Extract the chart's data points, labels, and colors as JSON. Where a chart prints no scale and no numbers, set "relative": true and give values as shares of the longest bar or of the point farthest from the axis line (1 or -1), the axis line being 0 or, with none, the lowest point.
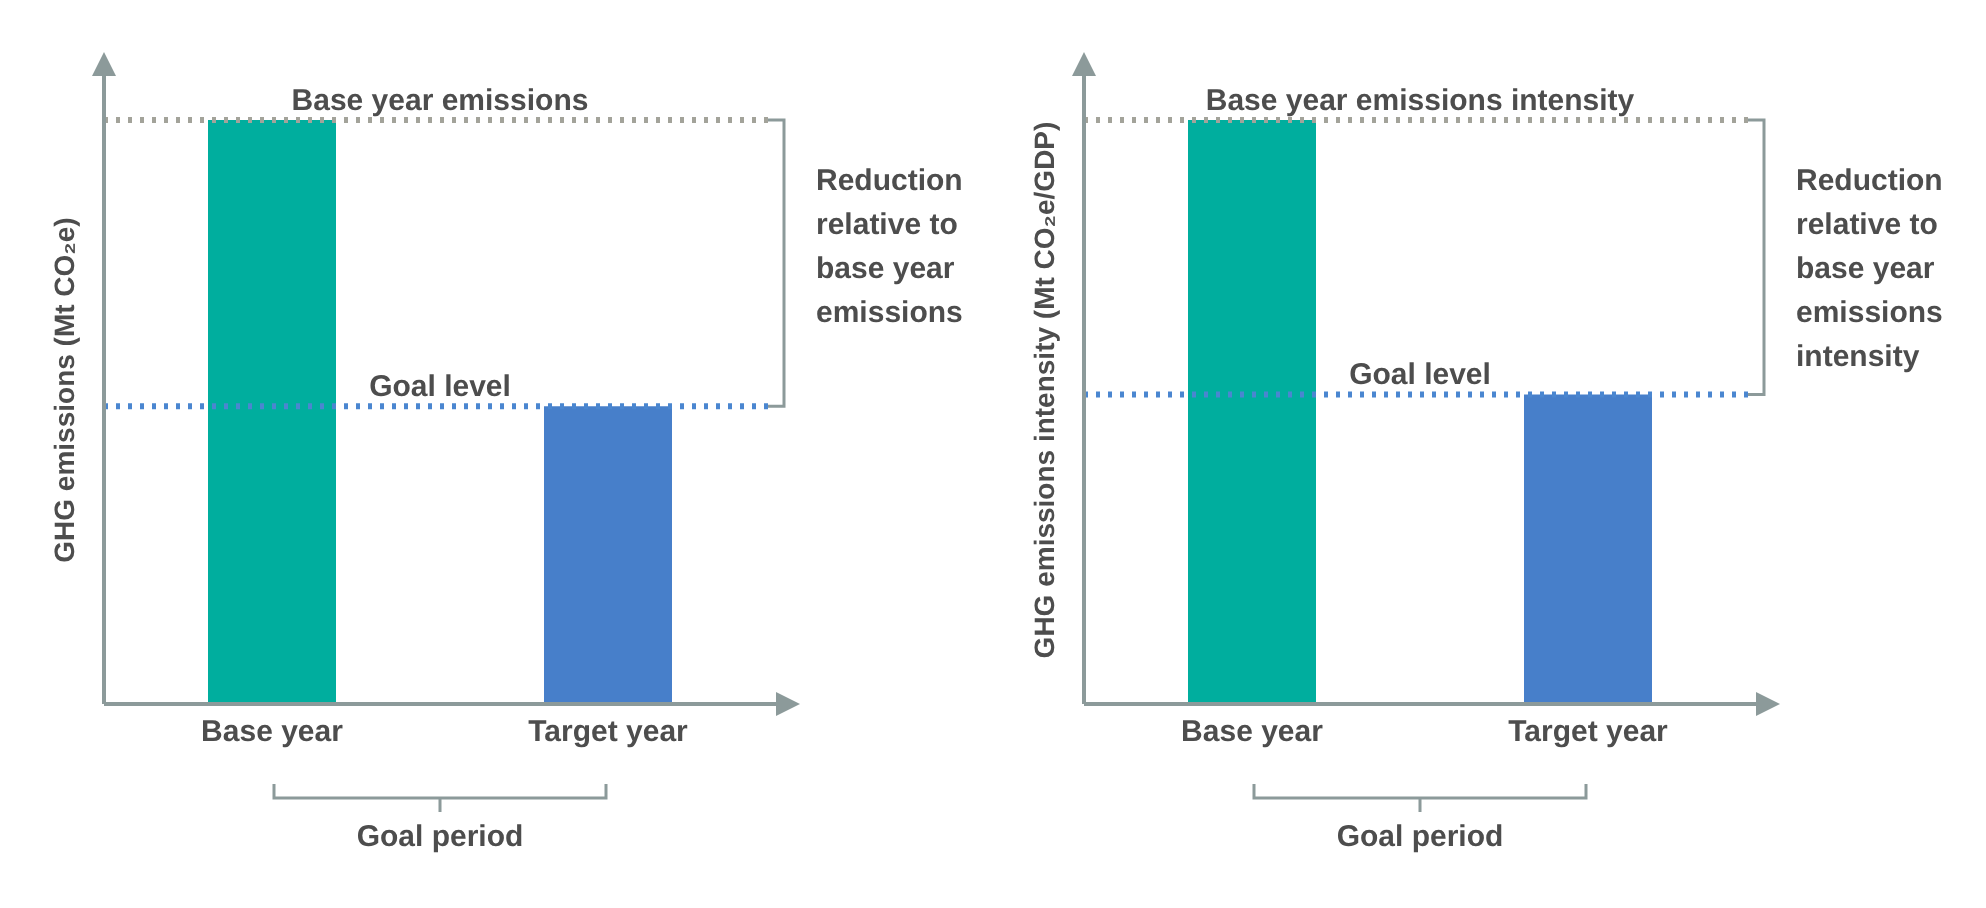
{
  "chart_data": [
    {
      "type": "bar",
      "relative": true,
      "ylabel": "GHG emissions (Mt CO₂e)",
      "categories": [
        "Base year",
        "Target year"
      ],
      "values": [
        1,
        0.51
      ],
      "colors": [
        "#00ae9e",
        "#477fca"
      ],
      "ref_lines": [
        {
          "axis": "y",
          "value": 1,
          "label": "Base year emissions",
          "color": "#a3a39a",
          "line_style": "dotted"
        },
        {
          "axis": "y",
          "value": 0.51,
          "label": "Goal level",
          "color": "#4a86d0",
          "line_style": "dotted"
        }
      ],
      "annotations": [
        "Reduction relative to base year emissions",
        "Goal period"
      ],
      "grid": false,
      "legend": false
    },
    {
      "type": "bar",
      "relative": true,
      "ylabel": "GHG emissions intensity (Mt CO₂e/GDP)",
      "categories": [
        "Base year",
        "Target year"
      ],
      "values": [
        1,
        0.53
      ],
      "colors": [
        "#00ae9e",
        "#477fca"
      ],
      "ref_lines": [
        {
          "axis": "y",
          "value": 1,
          "label": "Base year emissions intensity",
          "color": "#a3a39a",
          "line_style": "dotted"
        },
        {
          "axis": "y",
          "value": 0.53,
          "label": "Goal level",
          "color": "#4a86d0",
          "line_style": "dotted"
        }
      ],
      "annotations": [
        "Reduction relative to base year emissions intensity",
        "Goal period"
      ],
      "grid": false,
      "legend": false
    }
  ]
}
